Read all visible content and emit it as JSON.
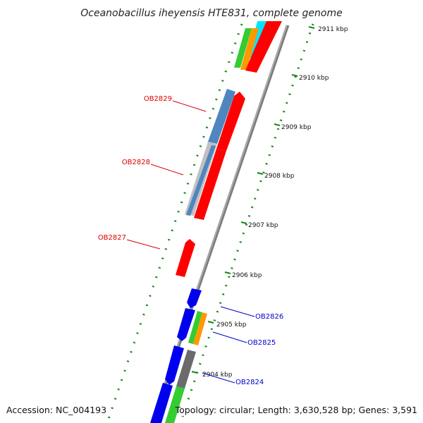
{
  "title": "Oceanobacillus iheyensis HTE831, complete genome",
  "footer": {
    "accession": "Accession: NC_004193",
    "topology": "Topology: circular; Length: 3,630,528 bp; Genes: 3,591"
  },
  "colors": {
    "red": "#ff0000",
    "steel_blue": "#4f86c0",
    "blue": "#0000ee",
    "green": "#33cc33",
    "orange": "#ff9900",
    "cyan": "#00e5ff",
    "gray": "#6b6b6b",
    "light_gray": "#bbbbbb",
    "ruler_green": "#118811",
    "label_red": "#dd0000",
    "label_blue": "#0000cc"
  },
  "ruler": {
    "kbp_labels": [
      {
        "id": "2911",
        "text": "2911 kbp"
      },
      {
        "id": "2910",
        "text": "2910 kbp"
      },
      {
        "id": "2909",
        "text": "2909 kbp"
      },
      {
        "id": "2908",
        "text": "2908 kbp"
      },
      {
        "id": "2907",
        "text": "2907 kbp"
      },
      {
        "id": "2906",
        "text": "2906 kbp"
      },
      {
        "id": "2905",
        "text": "2905 kbp"
      },
      {
        "id": "2904",
        "text": "2904 kbp"
      }
    ]
  },
  "gene_labels": [
    {
      "id": "OB2829",
      "text": "OB2829",
      "color": "#dd0000"
    },
    {
      "id": "OB2828",
      "text": "OB2828",
      "color": "#dd0000"
    },
    {
      "id": "OB2827",
      "text": "OB2827",
      "color": "#dd0000"
    },
    {
      "id": "OB2826",
      "text": "OB2826",
      "color": "#0000cc"
    },
    {
      "id": "OB2825",
      "text": "OB2825",
      "color": "#0000cc"
    },
    {
      "id": "OB2824",
      "text": "OB2824",
      "color": "#0000cc"
    }
  ]
}
